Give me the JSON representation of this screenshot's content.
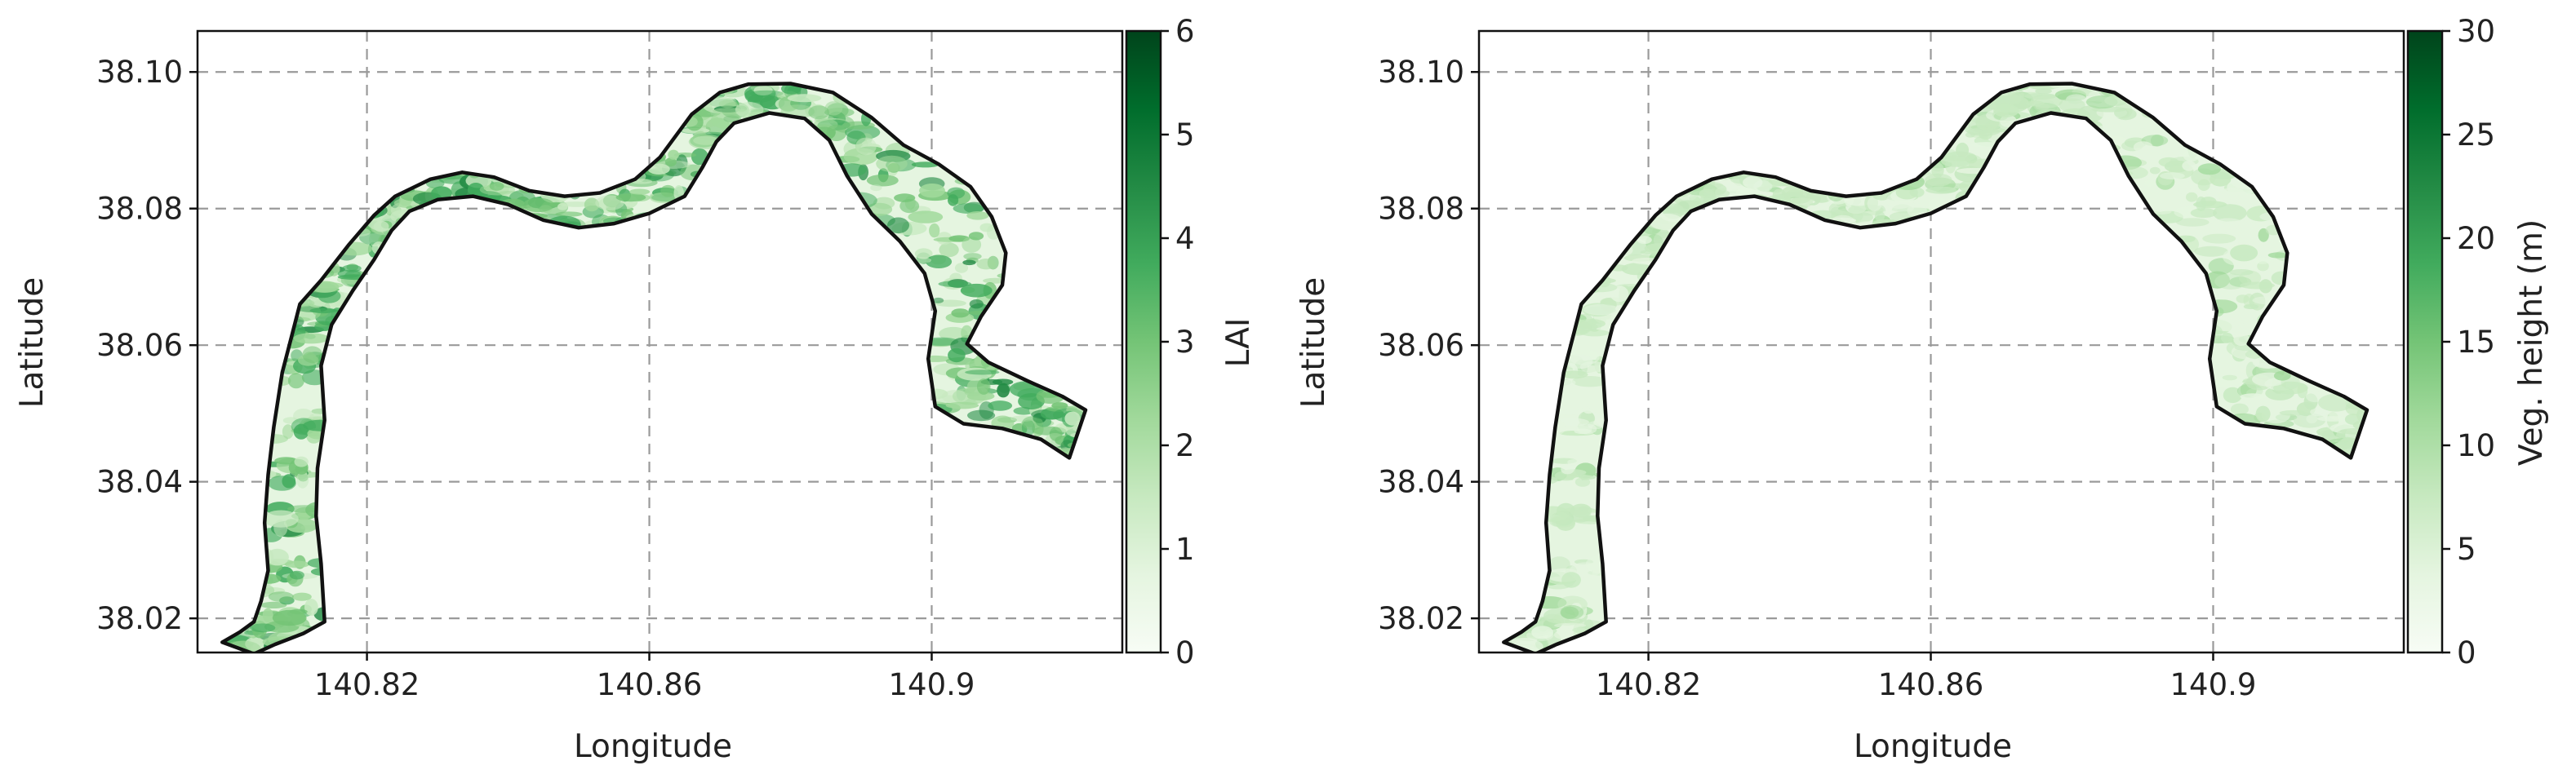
{
  "chart_data": [
    {
      "type": "heatmap",
      "title": "",
      "xlabel": "Longitude",
      "ylabel": "Latitude",
      "xlim": [
        140.796,
        140.927
      ],
      "ylim": [
        38.015,
        38.106
      ],
      "xticks": [
        140.82,
        140.86,
        140.9
      ],
      "xtick_labels": [
        "140.82",
        "140.86",
        "140.9"
      ],
      "yticks": [
        38.02,
        38.04,
        38.06,
        38.08,
        38.1
      ],
      "ytick_labels": [
        "38.02",
        "38.04",
        "38.06",
        "38.08",
        "38.10"
      ],
      "grid": true,
      "colormap": "Greens",
      "colorbar": {
        "label": "LAI",
        "min": 0,
        "max": 6,
        "ticks": [
          0,
          1,
          2,
          3,
          4,
          5,
          6
        ],
        "tick_labels": [
          "0",
          "1",
          "2",
          "3",
          "4",
          "5",
          "6"
        ]
      },
      "intensity": 0.55
    },
    {
      "type": "heatmap",
      "title": "",
      "xlabel": "Longitude",
      "ylabel": "Latitude",
      "xlim": [
        140.796,
        140.927
      ],
      "ylim": [
        38.015,
        38.106
      ],
      "xticks": [
        140.82,
        140.86,
        140.9
      ],
      "xtick_labels": [
        "140.82",
        "140.86",
        "140.9"
      ],
      "yticks": [
        38.02,
        38.04,
        38.06,
        38.08,
        38.1
      ],
      "ytick_labels": [
        "38.02",
        "38.04",
        "38.06",
        "38.08",
        "38.10"
      ],
      "grid": true,
      "colormap": "Greens",
      "colorbar": {
        "label": "Veg. height (m)",
        "min": 0,
        "max": 30,
        "ticks": [
          0,
          5,
          10,
          15,
          20,
          25,
          30
        ],
        "tick_labels": [
          "0",
          "5",
          "10",
          "15",
          "20",
          "25",
          "30"
        ]
      },
      "intensity": 0.22
    }
  ],
  "river_boundary": {
    "outer": [
      [
        140.7995,
        38.0165
      ],
      [
        140.802,
        38.018
      ],
      [
        140.804,
        38.0195
      ],
      [
        140.805,
        38.0225
      ],
      [
        140.806,
        38.027
      ],
      [
        140.8055,
        38.034
      ],
      [
        140.806,
        38.041
      ],
      [
        140.8068,
        38.048
      ],
      [
        140.808,
        38.056
      ],
      [
        140.8095,
        38.062
      ],
      [
        140.8105,
        38.066
      ],
      [
        140.8135,
        38.0695
      ],
      [
        140.8175,
        38.0748
      ],
      [
        140.821,
        38.079
      ],
      [
        140.824,
        38.0818
      ],
      [
        140.829,
        38.0843
      ],
      [
        140.8335,
        38.0853
      ],
      [
        140.838,
        38.0846
      ],
      [
        140.843,
        38.0826
      ],
      [
        140.848,
        38.0818
      ],
      [
        140.853,
        38.0823
      ],
      [
        140.858,
        38.0843
      ],
      [
        140.8615,
        38.0875
      ],
      [
        140.866,
        38.0938
      ],
      [
        140.87,
        38.097
      ],
      [
        140.874,
        38.0982
      ],
      [
        140.88,
        38.0983
      ],
      [
        140.886,
        38.097
      ],
      [
        140.8915,
        38.0933
      ],
      [
        140.896,
        38.0893
      ],
      [
        140.901,
        38.0865
      ],
      [
        140.9055,
        38.0832
      ],
      [
        140.9085,
        38.0788
      ],
      [
        140.9105,
        38.0735
      ],
      [
        140.91,
        38.0688
      ],
      [
        140.907,
        38.0642
      ],
      [
        140.905,
        38.0602
      ],
      [
        140.908,
        38.0575
      ],
      [
        140.9135,
        38.0548
      ],
      [
        140.9185,
        38.0525
      ],
      [
        140.9218,
        38.0505
      ],
      [
        140.9195,
        38.0435
      ]
    ],
    "inner": [
      [
        140.9195,
        38.0435
      ],
      [
        140.9155,
        38.0462
      ],
      [
        140.91,
        38.0478
      ],
      [
        140.9045,
        38.0485
      ],
      [
        140.9005,
        38.051
      ],
      [
        140.8995,
        38.058
      ],
      [
        140.9005,
        38.065
      ],
      [
        140.899,
        38.0705
      ],
      [
        140.8955,
        38.0752
      ],
      [
        140.8915,
        38.0792
      ],
      [
        140.888,
        38.0848
      ],
      [
        140.8855,
        38.09
      ],
      [
        140.882,
        38.0932
      ],
      [
        140.877,
        38.094
      ],
      [
        140.872,
        38.0925
      ],
      [
        140.8695,
        38.0898
      ],
      [
        140.8675,
        38.086
      ],
      [
        140.865,
        38.0818
      ],
      [
        140.86,
        38.0793
      ],
      [
        140.855,
        38.0778
      ],
      [
        140.85,
        38.0772
      ],
      [
        140.845,
        38.0783
      ],
      [
        140.84,
        38.0806
      ],
      [
        140.835,
        38.0818
      ],
      [
        140.83,
        38.0813
      ],
      [
        140.826,
        38.0796
      ],
      [
        140.8235,
        38.0768
      ],
      [
        140.821,
        38.0725
      ],
      [
        140.818,
        38.068
      ],
      [
        140.815,
        38.063
      ],
      [
        140.8135,
        38.057
      ],
      [
        140.814,
        38.049
      ],
      [
        140.813,
        38.042
      ],
      [
        140.8128,
        38.035
      ],
      [
        140.8135,
        38.028
      ],
      [
        140.814,
        38.0195
      ],
      [
        140.811,
        38.0178
      ],
      [
        140.807,
        38.0162
      ],
      [
        140.804,
        38.0148
      ]
    ]
  }
}
